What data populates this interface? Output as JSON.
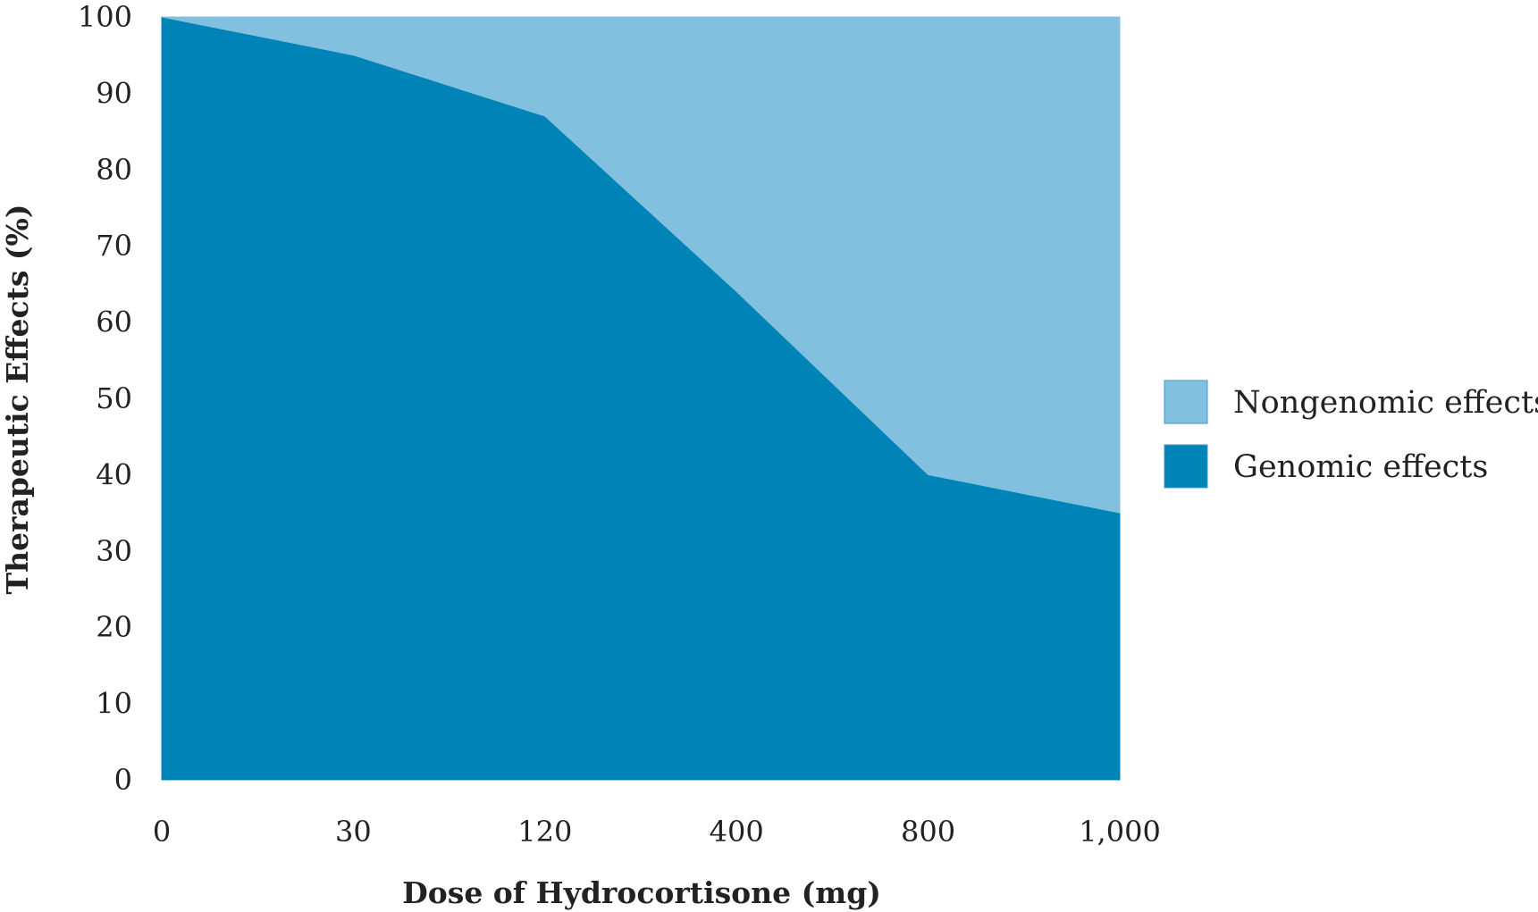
{
  "chart_data": {
    "type": "area",
    "stacked": true,
    "title": "",
    "xlabel": "Dose of Hydrocortisone (mg)",
    "ylabel": "Therapeutic Effects (%)",
    "categories": [
      "0",
      "30",
      "120",
      "400",
      "800",
      "1,000"
    ],
    "ylim": [
      0,
      100
    ],
    "yticks": [
      "0",
      "10",
      "20",
      "30",
      "40",
      "50",
      "60",
      "70",
      "80",
      "90",
      "100"
    ],
    "grid": false,
    "legend_position": "right",
    "series": [
      {
        "name": "Genomic effects",
        "values": [
          100,
          95,
          87,
          64,
          40,
          35
        ],
        "color": "#0083b7"
      },
      {
        "name": "Nongenomic effects",
        "values": [
          0,
          5,
          13,
          36,
          60,
          65
        ],
        "color": "#81c0de"
      }
    ]
  }
}
